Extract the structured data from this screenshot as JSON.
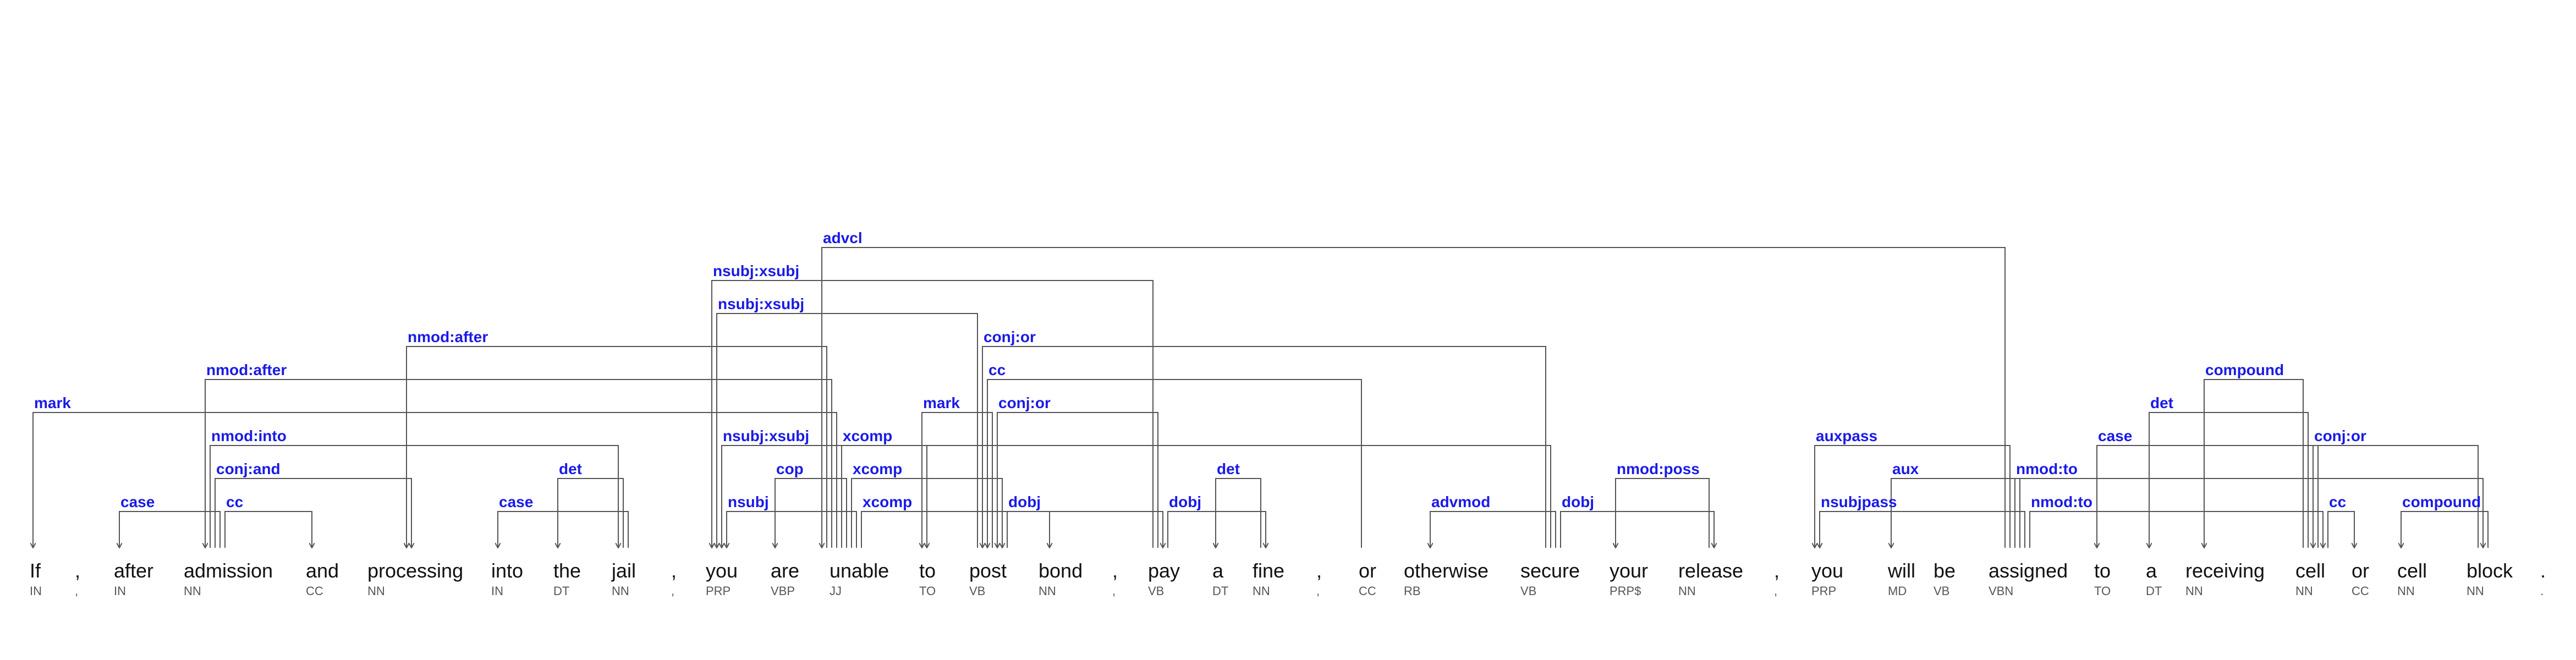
{
  "tokens": [
    {
      "word": "If",
      "pos": "IN"
    },
    {
      "word": ",",
      "pos": ","
    },
    {
      "word": "after",
      "pos": "IN"
    },
    {
      "word": "admission",
      "pos": "NN"
    },
    {
      "word": "and",
      "pos": "CC"
    },
    {
      "word": "processing",
      "pos": "NN"
    },
    {
      "word": "into",
      "pos": "IN"
    },
    {
      "word": "the",
      "pos": "DT"
    },
    {
      "word": "jail",
      "pos": "NN"
    },
    {
      "word": ",",
      "pos": ","
    },
    {
      "word": "you",
      "pos": "PRP"
    },
    {
      "word": "are",
      "pos": "VBP"
    },
    {
      "word": "unable",
      "pos": "JJ"
    },
    {
      "word": "to",
      "pos": "TO"
    },
    {
      "word": "post",
      "pos": "VB"
    },
    {
      "word": "bond",
      "pos": "NN"
    },
    {
      "word": ",",
      "pos": ","
    },
    {
      "word": "pay",
      "pos": "VB"
    },
    {
      "word": "a",
      "pos": "DT"
    },
    {
      "word": "fine",
      "pos": "NN"
    },
    {
      "word": ",",
      "pos": ","
    },
    {
      "word": "or",
      "pos": "CC"
    },
    {
      "word": "otherwise",
      "pos": "RB"
    },
    {
      "word": "secure",
      "pos": "VB"
    },
    {
      "word": "your",
      "pos": "PRP$"
    },
    {
      "word": "release",
      "pos": "NN"
    },
    {
      "word": ",",
      "pos": ","
    },
    {
      "word": "you",
      "pos": "PRP"
    },
    {
      "word": "will",
      "pos": "MD"
    },
    {
      "word": "be",
      "pos": "VB"
    },
    {
      "word": "assigned",
      "pos": "VBN"
    },
    {
      "word": "to",
      "pos": "TO"
    },
    {
      "word": "a",
      "pos": "DT"
    },
    {
      "word": "receiving",
      "pos": "NN"
    },
    {
      "word": "cell",
      "pos": "NN"
    },
    {
      "word": "or",
      "pos": "CC"
    },
    {
      "word": "cell",
      "pos": "NN"
    },
    {
      "word": "block",
      "pos": "NN"
    },
    {
      "word": ".",
      "pos": "."
    }
  ],
  "arcs": [
    {
      "head": 30,
      "dep": 12,
      "label": "advcl"
    },
    {
      "head": 17,
      "dep": 10,
      "label": "nsubj:xsubj"
    },
    {
      "head": 14,
      "dep": 10,
      "label": "nsubj:xsubj"
    },
    {
      "head": 23,
      "dep": 14,
      "label": "conj:or"
    },
    {
      "head": 12,
      "dep": 5,
      "label": "nmod:after"
    },
    {
      "head": 12,
      "dep": 3,
      "label": "nmod:after"
    },
    {
      "head": 21,
      "dep": 14,
      "label": "cc"
    },
    {
      "head": 12,
      "dep": 0,
      "label": "mark"
    },
    {
      "head": 14,
      "dep": 13,
      "label": "mark"
    },
    {
      "head": 17,
      "dep": 14,
      "label": "conj:or"
    },
    {
      "head": 34,
      "dep": 33,
      "label": "compound"
    },
    {
      "head": 3,
      "dep": 8,
      "label": "nmod:into"
    },
    {
      "head": 23,
      "dep": 10,
      "label": "nsubj:xsubj"
    },
    {
      "head": 12,
      "dep": 13,
      "label": "xcomp"
    },
    {
      "head": 34,
      "dep": 32,
      "label": "det"
    },
    {
      "head": 37,
      "dep": 34,
      "label": "conj:or"
    },
    {
      "head": 30,
      "dep": 27,
      "label": "auxpass"
    },
    {
      "head": 34,
      "dep": 31,
      "label": "case"
    },
    {
      "head": 30,
      "dep": 37,
      "label": "nmod:to"
    },
    {
      "head": 3,
      "dep": 5,
      "label": "conj:and"
    },
    {
      "head": 8,
      "dep": 7,
      "label": "det"
    },
    {
      "head": 12,
      "dep": 11,
      "label": "cop"
    },
    {
      "head": 12,
      "dep": 14,
      "label": "xcomp"
    },
    {
      "head": 19,
      "dep": 18,
      "label": "det"
    },
    {
      "head": 25,
      "dep": 24,
      "label": "nmod:poss"
    },
    {
      "head": 30,
      "dep": 28,
      "label": "aux"
    },
    {
      "head": 3,
      "dep": 2,
      "label": "case"
    },
    {
      "head": 3,
      "dep": 4,
      "label": "cc"
    },
    {
      "head": 8,
      "dep": 6,
      "label": "case"
    },
    {
      "head": 12,
      "dep": 10,
      "label": "nsubj"
    },
    {
      "head": 12,
      "dep": 17,
      "label": "xcomp"
    },
    {
      "head": 14,
      "dep": 15,
      "label": "dobj"
    },
    {
      "head": 17,
      "dep": 19,
      "label": "dobj"
    },
    {
      "head": 23,
      "dep": 22,
      "label": "advmod"
    },
    {
      "head": 23,
      "dep": 25,
      "label": "dobj"
    },
    {
      "head": 30,
      "dep": 27,
      "label": "nsubjpass"
    },
    {
      "head": 30,
      "dep": 34,
      "label": "nmod:to"
    },
    {
      "head": 34,
      "dep": 35,
      "label": "cc"
    },
    {
      "head": 37,
      "dep": 36,
      "label": "compound"
    }
  ],
  "colors": {
    "label": "#1a1ae6",
    "line": "#555555",
    "word": "#111111",
    "pos": "#555555"
  }
}
